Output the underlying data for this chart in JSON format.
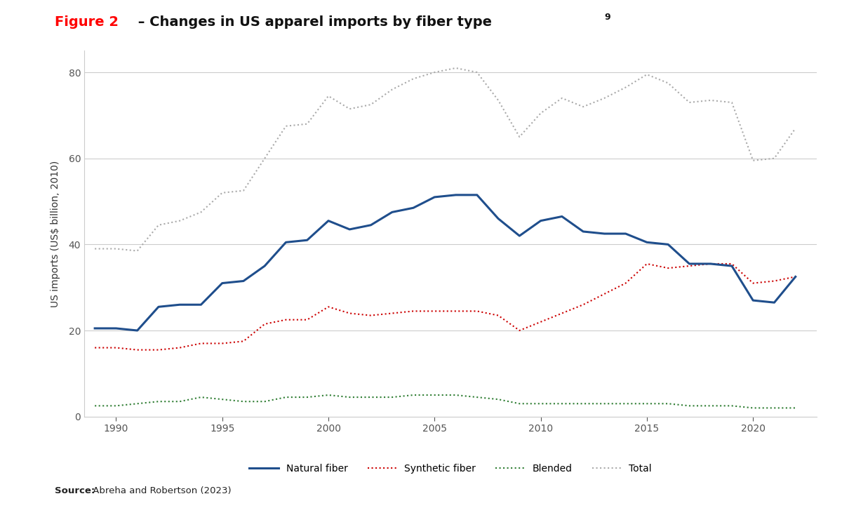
{
  "title_red": "Figure 2",
  "title_black": " – Changes in US apparel imports by fiber type",
  "title_superscript": "9",
  "ylabel": "US imports (US$ billion, 2010)",
  "source_bold": "Source:",
  "source_normal": " Abreha and Robertson (2023)",
  "years": [
    1989,
    1990,
    1991,
    1992,
    1993,
    1994,
    1995,
    1996,
    1997,
    1998,
    1999,
    2000,
    2001,
    2002,
    2003,
    2004,
    2005,
    2006,
    2007,
    2008,
    2009,
    2010,
    2011,
    2012,
    2013,
    2014,
    2015,
    2016,
    2017,
    2018,
    2019,
    2020,
    2021,
    2022
  ],
  "natural_fiber": [
    20.5,
    20.5,
    20.0,
    25.5,
    26.0,
    26.0,
    31.0,
    31.5,
    35.0,
    40.5,
    41.0,
    45.5,
    43.5,
    44.5,
    47.5,
    48.5,
    51.0,
    51.5,
    51.5,
    46.0,
    42.0,
    45.5,
    46.5,
    43.0,
    42.5,
    42.5,
    40.5,
    40.0,
    35.5,
    35.5,
    35.0,
    27.0,
    26.5,
    32.5
  ],
  "synthetic_fiber": [
    16.0,
    16.0,
    15.5,
    15.5,
    16.0,
    17.0,
    17.0,
    17.5,
    21.5,
    22.5,
    22.5,
    25.5,
    24.0,
    23.5,
    24.0,
    24.5,
    24.5,
    24.5,
    24.5,
    23.5,
    20.0,
    22.0,
    24.0,
    26.0,
    28.5,
    31.0,
    35.5,
    34.5,
    35.0,
    35.5,
    35.5,
    31.0,
    31.5,
    32.5
  ],
  "blended": [
    2.5,
    2.5,
    3.0,
    3.5,
    3.5,
    4.5,
    4.0,
    3.5,
    3.5,
    4.5,
    4.5,
    5.0,
    4.5,
    4.5,
    4.5,
    5.0,
    5.0,
    5.0,
    4.5,
    4.0,
    3.0,
    3.0,
    3.0,
    3.0,
    3.0,
    3.0,
    3.0,
    3.0,
    2.5,
    2.5,
    2.5,
    2.0,
    2.0,
    2.0
  ],
  "total": [
    39.0,
    39.0,
    38.5,
    44.5,
    45.5,
    47.5,
    52.0,
    52.5,
    60.0,
    67.5,
    68.0,
    74.5,
    71.5,
    72.5,
    76.0,
    78.5,
    80.0,
    81.0,
    80.0,
    73.5,
    65.0,
    70.5,
    74.0,
    72.0,
    74.0,
    76.5,
    79.5,
    77.5,
    73.0,
    73.5,
    73.0,
    59.5,
    60.0,
    67.0
  ],
  "natural_color": "#1f4e8c",
  "synthetic_color": "#cc0000",
  "blended_color": "#2e7d32",
  "total_color": "#aaaaaa",
  "background_color": "#ffffff",
  "ylim": [
    0,
    85
  ],
  "yticks": [
    0,
    20,
    40,
    60,
    80
  ],
  "xtick_years": [
    1990,
    1995,
    2000,
    2005,
    2010,
    2015,
    2020
  ],
  "legend_labels": [
    "Natural fiber",
    "Synthetic fiber",
    "Blended",
    "Total"
  ]
}
